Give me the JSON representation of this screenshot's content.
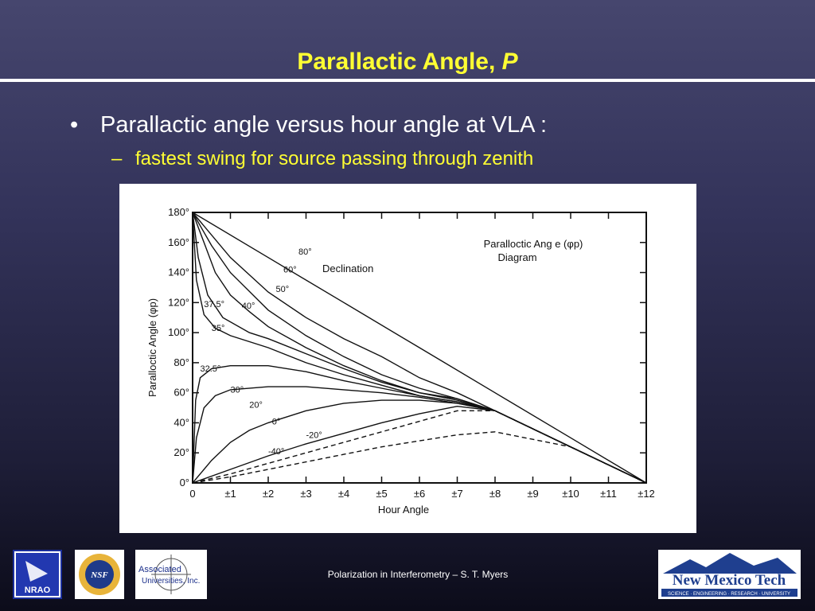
{
  "slide": {
    "title_main": "Parallactic Angle, ",
    "title_italic": "P",
    "bullet_1": "Parallactic angle versus hour angle at VLA :",
    "bullet_1_marker": "•",
    "bullet_2": "fastest swing for source passing through zenith",
    "bullet_2_marker": "–",
    "footer": "Polarization in Interferometry – S. T. Myers"
  },
  "logos": {
    "nrao": "NRAO",
    "nsf": "NSF",
    "associated_line1": "Associated",
    "associated_line2": "Universities, Inc.",
    "nmt_name": "New Mexico Tech",
    "nmt_tagline": "SCIENCE · ENGINEERING · RESEARCH · UNIVERSITY"
  },
  "chart_data": {
    "type": "line",
    "title": "Paralloctic Ang e (φp) Diagram",
    "title_line1": "Paralloctic Ang e (φp)",
    "title_line2": "Diagram",
    "xlabel": "Hour Angle",
    "ylabel": "Paralloctic Angle (φp)",
    "legend_title": "Declination",
    "xlim": [
      0,
      12
    ],
    "ylim": [
      0,
      180
    ],
    "x_ticks": [
      "0",
      "±1",
      "±2",
      "±3",
      "±4",
      "±5",
      "±6",
      "±7",
      "±8",
      "±9",
      "±10",
      "±11",
      "±12"
    ],
    "y_ticks": [
      "0°",
      "20°",
      "40°",
      "60°",
      "80°",
      "100°",
      "120°",
      "140°",
      "160°",
      "180°"
    ],
    "series": [
      {
        "name": "80°",
        "x": [
          0,
          2,
          4,
          6,
          8,
          10,
          12
        ],
        "y": [
          180,
          150,
          120,
          90,
          60,
          30,
          0
        ]
      },
      {
        "name": "60°",
        "x": [
          0,
          1,
          2,
          3,
          4,
          5,
          6,
          7,
          8,
          10,
          12
        ],
        "y": [
          180,
          150,
          127,
          110,
          96,
          84,
          70,
          60,
          48,
          24,
          0
        ]
      },
      {
        "name": "50°",
        "x": [
          0,
          0.5,
          1,
          2,
          3,
          4,
          5,
          6,
          7,
          8,
          10,
          12
        ],
        "y": [
          180,
          158,
          140,
          115,
          98,
          84,
          72,
          63,
          56,
          48,
          24,
          0
        ]
      },
      {
        "name": "40°",
        "x": [
          0,
          0.3,
          0.6,
          1,
          1.5,
          2,
          3,
          4,
          5,
          6,
          7,
          8,
          10,
          12
        ],
        "y": [
          180,
          160,
          140,
          125,
          114,
          104,
          90,
          78,
          68,
          60,
          56,
          48,
          24,
          0
        ]
      },
      {
        "name": "37.5°",
        "x": [
          0,
          0.15,
          0.4,
          0.8,
          1.5,
          2,
          3,
          4,
          5,
          6,
          7,
          8,
          10,
          12
        ],
        "y": [
          180,
          150,
          125,
          110,
          100,
          96,
          86,
          76,
          67,
          60,
          55,
          48,
          24,
          0
        ]
      },
      {
        "name": "35°",
        "x": [
          0,
          0.1,
          0.3,
          0.6,
          1,
          2,
          3,
          4,
          5,
          6,
          7,
          8,
          10,
          12
        ],
        "y": [
          180,
          135,
          112,
          103,
          98,
          90,
          80,
          72,
          65,
          58,
          54,
          48,
          24,
          0
        ]
      },
      {
        "name": "32.5°",
        "x": [
          0,
          0.08,
          0.2,
          0.5,
          1,
          2,
          3,
          4,
          5,
          6,
          7,
          8,
          10,
          12
        ],
        "y": [
          0,
          55,
          70,
          76,
          78,
          78,
          74,
          68,
          63,
          58,
          54,
          48,
          24,
          0
        ]
      },
      {
        "name": "30°",
        "x": [
          0,
          0.1,
          0.3,
          0.6,
          1,
          2,
          3,
          4,
          5,
          6,
          7,
          8,
          10,
          12
        ],
        "y": [
          0,
          30,
          50,
          58,
          62,
          64,
          64,
          62,
          60,
          57,
          53,
          48,
          24,
          0
        ]
      },
      {
        "name": "20°",
        "x": [
          0,
          0.5,
          1,
          1.5,
          2,
          3,
          4,
          5,
          6,
          7,
          8,
          10,
          12
        ],
        "y": [
          0,
          15,
          27,
          35,
          40,
          48,
          53,
          55,
          55,
          53,
          48,
          24,
          0
        ]
      },
      {
        "name": "0°",
        "x": [
          0,
          1,
          2,
          3,
          4,
          5,
          6,
          7,
          8,
          10,
          12
        ],
        "y": [
          0,
          9,
          18,
          26,
          33,
          40,
          46,
          51,
          48,
          24,
          0
        ]
      },
      {
        "name": "-20°",
        "x": [
          0,
          1,
          2,
          3,
          4,
          5,
          6,
          7,
          8,
          10,
          12
        ],
        "y": [
          0,
          6,
          13,
          20,
          27,
          34,
          41,
          48,
          48,
          24,
          0
        ]
      },
      {
        "name": "-40°",
        "x": [
          0,
          1,
          2,
          3,
          4,
          5,
          6,
          7,
          8,
          10,
          12
        ],
        "y": [
          0,
          4,
          9,
          14,
          19,
          24,
          28,
          32,
          34,
          24,
          0
        ]
      }
    ],
    "series_labels": [
      "80°",
      "60°",
      "50°",
      "40°",
      "37.5°",
      "35°",
      "32.5°",
      "30°",
      "20°",
      "0°",
      "-20°",
      "-40°"
    ],
    "grid": false
  }
}
